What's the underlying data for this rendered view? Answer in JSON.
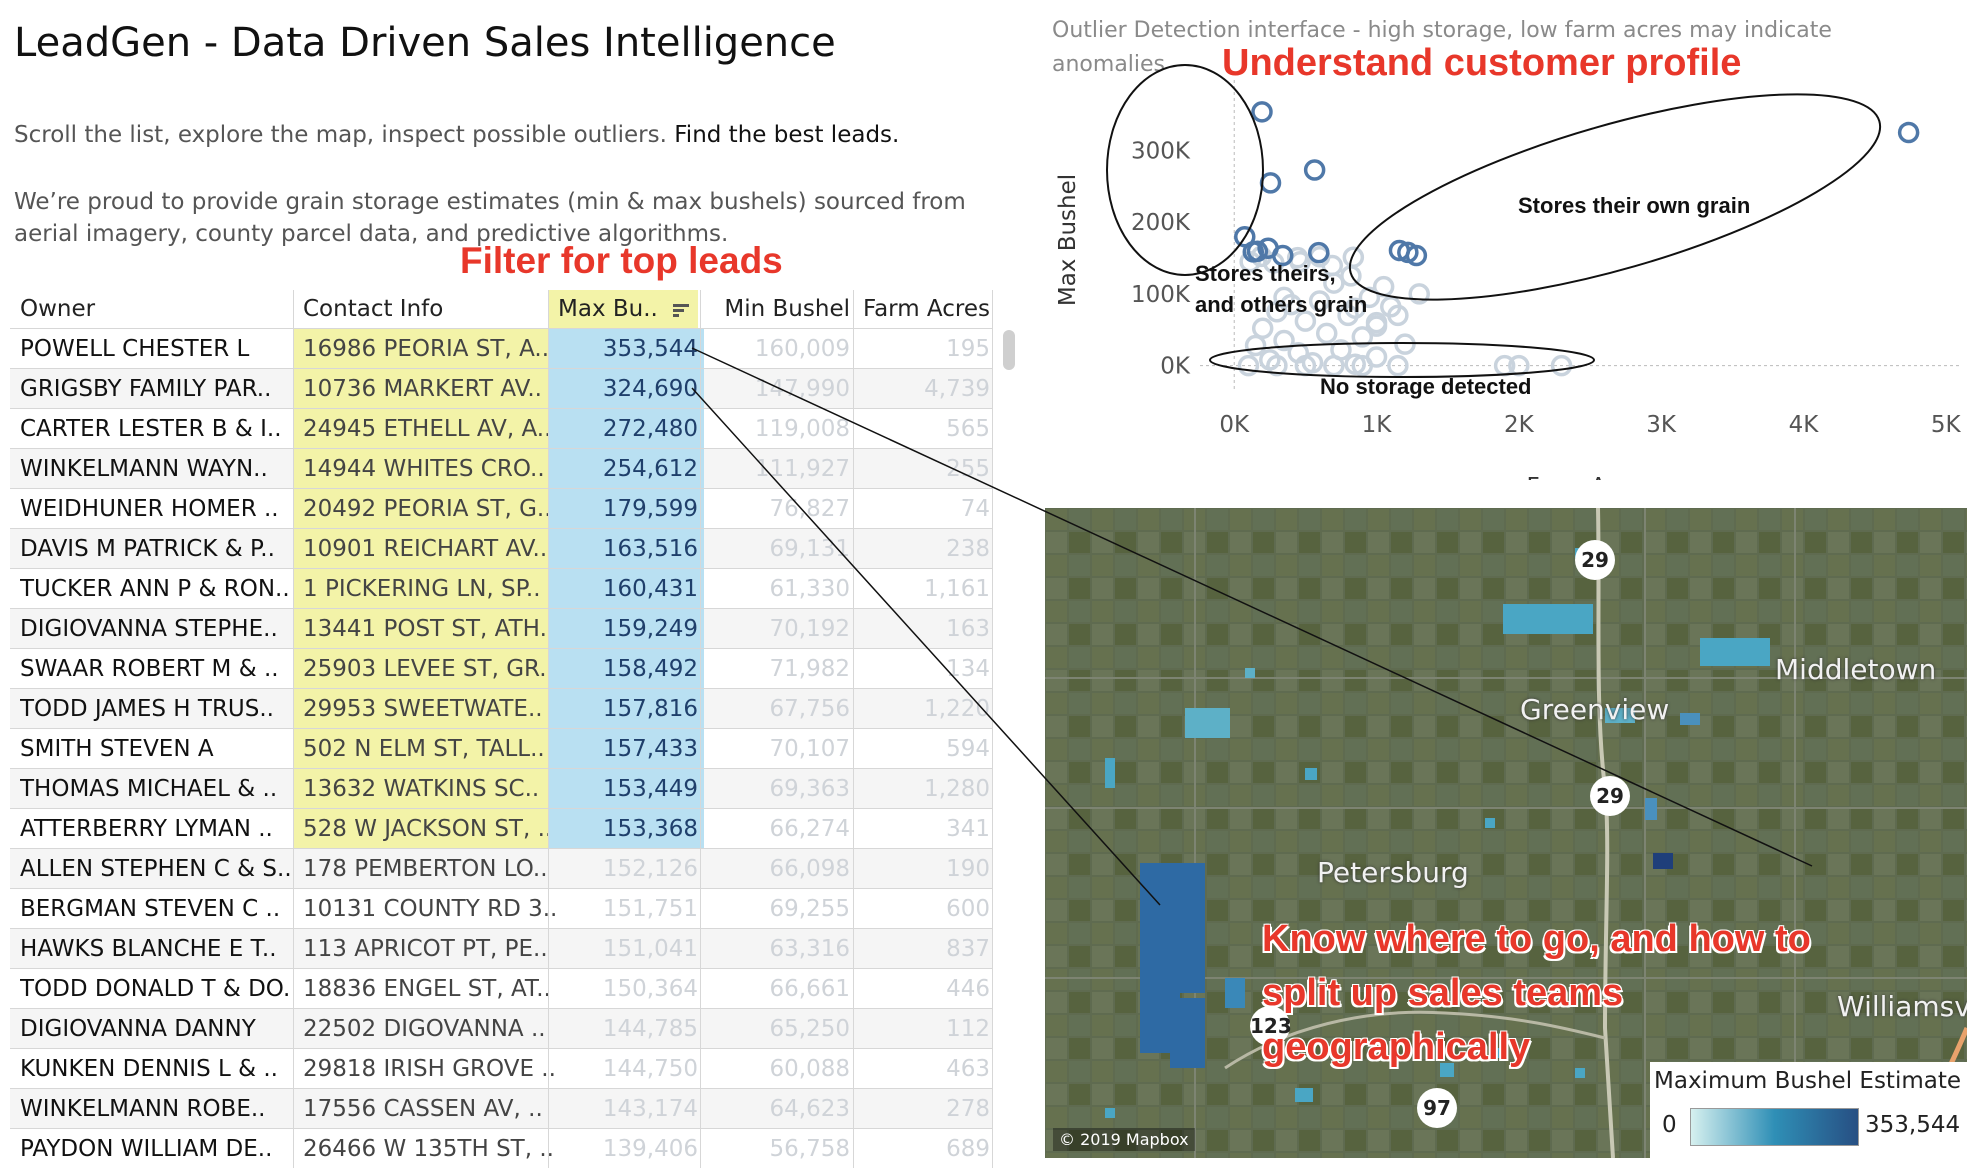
{
  "header": {
    "title": "LeadGen - Data Driven Sales Intelligence",
    "subtitle_plain": "Scroll the list, explore the map, inspect possible outliers. ",
    "subtitle_emphasis": "Find the best leads.",
    "description": "We’re proud to provide grain storage estimates (min & max bushels) sourced from aerial imagery, county parcel data, and predictive algorithms."
  },
  "callouts": {
    "filter": "Filter for top leads",
    "profile": "Understand customer profile",
    "geo": "Know where to go, and how to split up sales teams geographically"
  },
  "table": {
    "columns": [
      "Owner",
      "Contact Info",
      "Max Bu..",
      "Min Bushel",
      "Farm Acres"
    ],
    "sort_icon": "sort-descending-icon",
    "highlighted_rows": 13,
    "rows": [
      [
        "POWELL CHESTER L",
        "16986 PEORIA ST, A..",
        "353,544",
        "160,009",
        "195"
      ],
      [
        "GRIGSBY FAMILY PAR..",
        "10736 MARKERT AV..",
        "324,690",
        "147,990",
        "4,739"
      ],
      [
        "CARTER LESTER B & I..",
        "24945 ETHELL AV, A..",
        "272,480",
        "119,008",
        "565"
      ],
      [
        "WINKELMANN WAYN..",
        "14944 WHITES CRO..",
        "254,612",
        "111,927",
        "255"
      ],
      [
        "WEIDHUNER HOMER ..",
        "20492 PEORIA ST, G..",
        "179,599",
        "76,827",
        "74"
      ],
      [
        "DAVIS M PATRICK & P..",
        "10901 REICHART AV..",
        "163,516",
        "69,131",
        "238"
      ],
      [
        "TUCKER ANN P & RON..",
        "1 PICKERING LN, SP..",
        "160,431",
        "61,330",
        "1,161"
      ],
      [
        "DIGIOVANNA STEPHE..",
        "13441 POST ST, ATH..",
        "159,249",
        "70,192",
        "163"
      ],
      [
        "SWAAR ROBERT M & ..",
        "25903 LEVEE ST, GR..",
        "158,492",
        "71,982",
        "134"
      ],
      [
        "TODD JAMES H TRUS..",
        "29953 SWEETWATE..",
        "157,816",
        "67,756",
        "1,220"
      ],
      [
        "SMITH STEVEN A",
        "502 N ELM ST, TALL..",
        "157,433",
        "70,107",
        "594"
      ],
      [
        "THOMAS MICHAEL & ..",
        "13632 WATKINS SC..",
        "153,449",
        "69,363",
        "1,280"
      ],
      [
        "ATTERBERRY LYMAN ..",
        "528 W JACKSON ST, ..",
        "153,368",
        "66,274",
        "341"
      ],
      [
        "ALLEN STEPHEN C & S..",
        "178 PEMBERTON LO..",
        "152,126",
        "66,098",
        "190"
      ],
      [
        "BERGMAN STEVEN C ..",
        "10131 COUNTY RD 3..",
        "151,751",
        "69,255",
        "600"
      ],
      [
        "HAWKS BLANCHE E T..",
        "113 APRICOT PT, PE..",
        "151,041",
        "63,316",
        "837"
      ],
      [
        "TODD DONALD T & DO..",
        "18836 ENGEL ST, AT..",
        "150,364",
        "66,661",
        "446"
      ],
      [
        "DIGIOVANNA DANNY",
        "22502 DIGOVANNA ..",
        "144,785",
        "65,250",
        "112"
      ],
      [
        "KUNKEN DENNIS L & ..",
        "29818 IRISH GROVE ..",
        "144,750",
        "60,088",
        "463"
      ],
      [
        "WINKELMANN ROBE..",
        "17556 CASSEN AV, ..",
        "143,174",
        "64,623",
        "278"
      ],
      [
        "PAYDON WILLIAM DE..",
        "26466 W 135TH ST, ..",
        "139,406",
        "56,758",
        "689"
      ]
    ]
  },
  "scatter": {
    "title": "Outlier Detection interface - high storage, low farm acres may indicate anomalies",
    "annotations": {
      "stores_theirs": "Stores theirs,",
      "and_others": "and others grain",
      "stores_own": "Stores their own grain",
      "no_storage": "No storage detected"
    },
    "colors": {
      "highlight": "#4f78a8",
      "other": "#c9d3dd"
    }
  },
  "chart_data": {
    "type": "scatter",
    "xlabel": "Farm Acres",
    "ylabel": "Max Bushel",
    "xlim": [
      -100,
      5100
    ],
    "ylim": [
      -20000,
      370000
    ],
    "x_ticks": [
      "0K",
      "1K",
      "2K",
      "3K",
      "4K",
      "5K"
    ],
    "x_tick_values": [
      0,
      1000,
      2000,
      3000,
      4000,
      5000
    ],
    "y_ticks": [
      "0K",
      "100K",
      "200K",
      "300K"
    ],
    "y_tick_values": [
      0,
      100000,
      200000,
      300000
    ],
    "series": [
      {
        "values_xy": [
          [
            195,
            353544
          ],
          [
            4739,
            324690
          ],
          [
            565,
            272480
          ],
          [
            255,
            254612
          ],
          [
            74,
            179599
          ],
          [
            238,
            163516
          ],
          [
            1161,
            160431
          ],
          [
            163,
            159249
          ],
          [
            134,
            158492
          ],
          [
            1220,
            157816
          ],
          [
            594,
            157433
          ],
          [
            1280,
            153449
          ],
          [
            341,
            153368
          ]
        ]
      },
      {
        "values_xy": [
          [
            190,
            152126
          ],
          [
            600,
            151751
          ],
          [
            837,
            151041
          ],
          [
            446,
            150364
          ],
          [
            112,
            144785
          ],
          [
            463,
            144750
          ],
          [
            278,
            143174
          ],
          [
            689,
            139406
          ],
          [
            820,
            125000
          ],
          [
            700,
            115000
          ],
          [
            1050,
            110000
          ],
          [
            1300,
            100000
          ],
          [
            950,
            95000
          ],
          [
            600,
            90000
          ],
          [
            400,
            85000
          ],
          [
            1100,
            82000
          ],
          [
            300,
            75000
          ],
          [
            800,
            70000
          ],
          [
            500,
            62000
          ],
          [
            1000,
            55000
          ],
          [
            200,
            52000
          ],
          [
            650,
            45000
          ],
          [
            900,
            40000
          ],
          [
            350,
            35000
          ],
          [
            1200,
            30000
          ],
          [
            150,
            28000
          ],
          [
            750,
            22000
          ],
          [
            450,
            18000
          ],
          [
            1000,
            12000
          ],
          [
            250,
            8000
          ],
          [
            550,
            4000
          ],
          [
            850,
            2000
          ],
          [
            100,
            0
          ],
          [
            300,
            0
          ],
          [
            500,
            0
          ],
          [
            700,
            0
          ],
          [
            900,
            0
          ],
          [
            1150,
            0
          ],
          [
            1900,
            0
          ],
          [
            2000,
            0
          ],
          [
            2300,
            0
          ],
          [
            1000,
            60000
          ],
          [
            1150,
            70000
          ],
          [
            350,
            95000
          ],
          [
            850,
            80000
          ]
        ]
      }
    ]
  },
  "map": {
    "towns": [
      "Middletown",
      "Greenview",
      "Petersburg",
      "Williamsv"
    ],
    "routes": [
      "29",
      "29",
      "123",
      "97"
    ],
    "legend_title": "Maximum Bushel Estimate",
    "legend_min": "0",
    "legend_max": "353,544",
    "attribution": "© 2019 Mapbox"
  }
}
